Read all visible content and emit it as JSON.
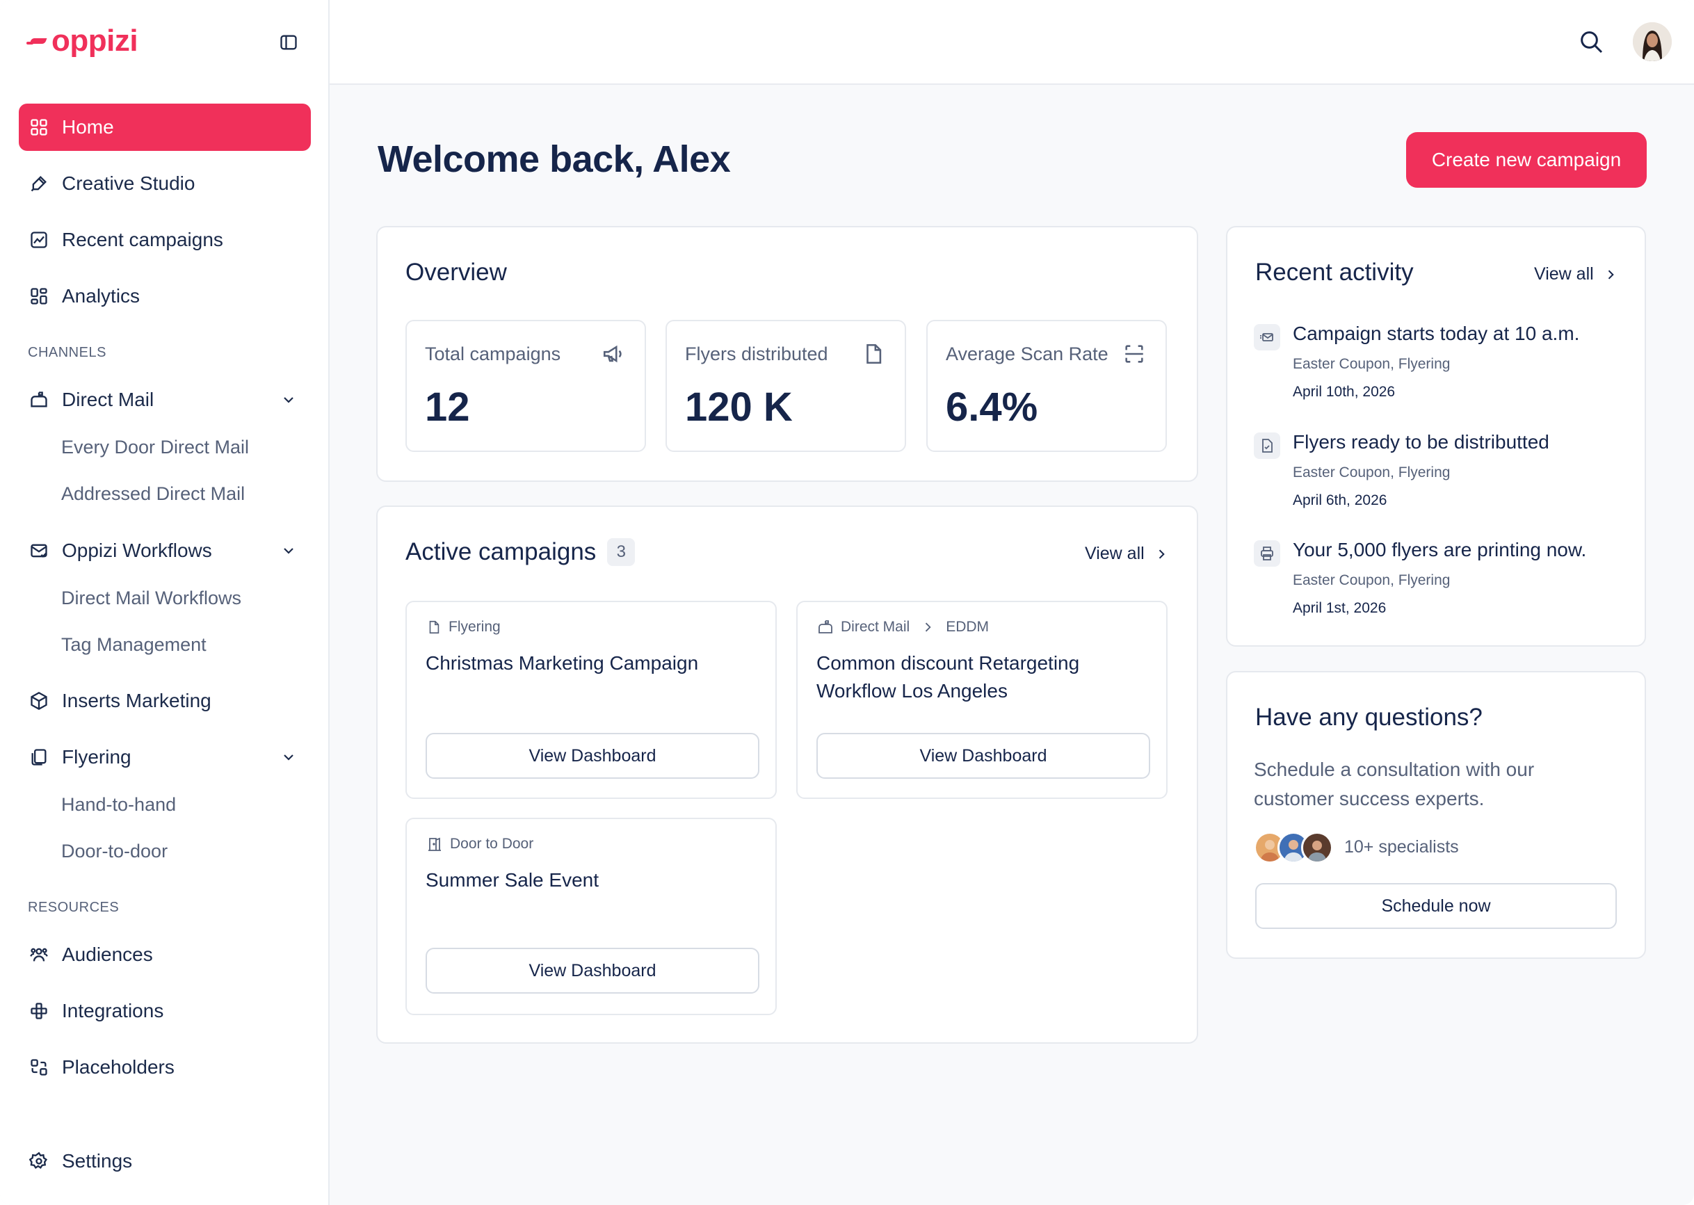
{
  "brand": {
    "name": "oppizi",
    "accent": "#f0305a",
    "text_dark": "#16254a",
    "muted": "#566179"
  },
  "sidebar": {
    "items": [
      {
        "label": "Home",
        "icon": "grid-icon",
        "active": true
      },
      {
        "label": "Creative Studio",
        "icon": "brush-icon"
      },
      {
        "label": "Recent campaigns",
        "icon": "chart-box-icon"
      },
      {
        "label": "Analytics",
        "icon": "dashboard-icon"
      }
    ],
    "channels_label": "CHANNELS",
    "direct_mail": {
      "label": "Direct Mail",
      "subs": [
        "Every Door Direct Mail",
        "Addressed Direct Mail"
      ]
    },
    "workflows": {
      "label": "Oppizi Workflows",
      "subs": [
        "Direct Mail Workflows",
        "Tag Management"
      ]
    },
    "inserts": {
      "label": "Inserts Marketing"
    },
    "flyering": {
      "label": "Flyering",
      "subs": [
        "Hand-to-hand",
        "Door-to-door"
      ]
    },
    "resources_label": "RESOURCES",
    "resources": [
      {
        "label": "Audiences",
        "icon": "users-icon"
      },
      {
        "label": "Integrations",
        "icon": "plug-icon"
      },
      {
        "label": "Placeholders",
        "icon": "placeholder-icon"
      }
    ],
    "settings": {
      "label": "Settings"
    }
  },
  "header": {
    "welcome": "Welcome back, Alex",
    "create_button": "Create new campaign"
  },
  "overview": {
    "title": "Overview",
    "stats": [
      {
        "label": "Total campaigns",
        "value": "12",
        "icon": "megaphone-icon"
      },
      {
        "label": "Flyers distributed",
        "value": "120 K",
        "icon": "file-icon"
      },
      {
        "label": "Average Scan Rate",
        "value": "6.4%",
        "icon": "scan-icon"
      }
    ]
  },
  "active_campaigns": {
    "title": "Active campaigns",
    "count": "3",
    "view_all": "View all",
    "items": [
      {
        "tag": "Flyering",
        "name": "Christmas Marketing Campaign",
        "button": "View Dashboard"
      },
      {
        "tag": "Direct Mail",
        "tag2": "EDDM",
        "name": "Common discount Retargeting Workflow Los Angeles",
        "button": "View Dashboard"
      },
      {
        "tag": "Door to Door",
        "name": "Summer Sale Event",
        "button": "View Dashboard"
      }
    ]
  },
  "recent_activity": {
    "title": "Recent activity",
    "view_all": "View all",
    "items": [
      {
        "title": "Campaign starts today at 10 a.m.",
        "sub": "Easter Coupon, Flyering",
        "date": "April 10th, 2026",
        "icon": "mail-icon"
      },
      {
        "title": "Flyers ready to be distributted",
        "sub": "Easter Coupon, Flyering",
        "date": "April 6th, 2026",
        "icon": "document-check-icon"
      },
      {
        "title": "Your 5,000 flyers are printing now.",
        "sub": "Easter Coupon, Flyering",
        "date": "April 1st, 2026",
        "icon": "printer-icon"
      }
    ]
  },
  "questions": {
    "title": "Have any questions?",
    "text": "Schedule a consultation with our customer success experts.",
    "specialists": "10+ specialists",
    "button": "Schedule now"
  }
}
